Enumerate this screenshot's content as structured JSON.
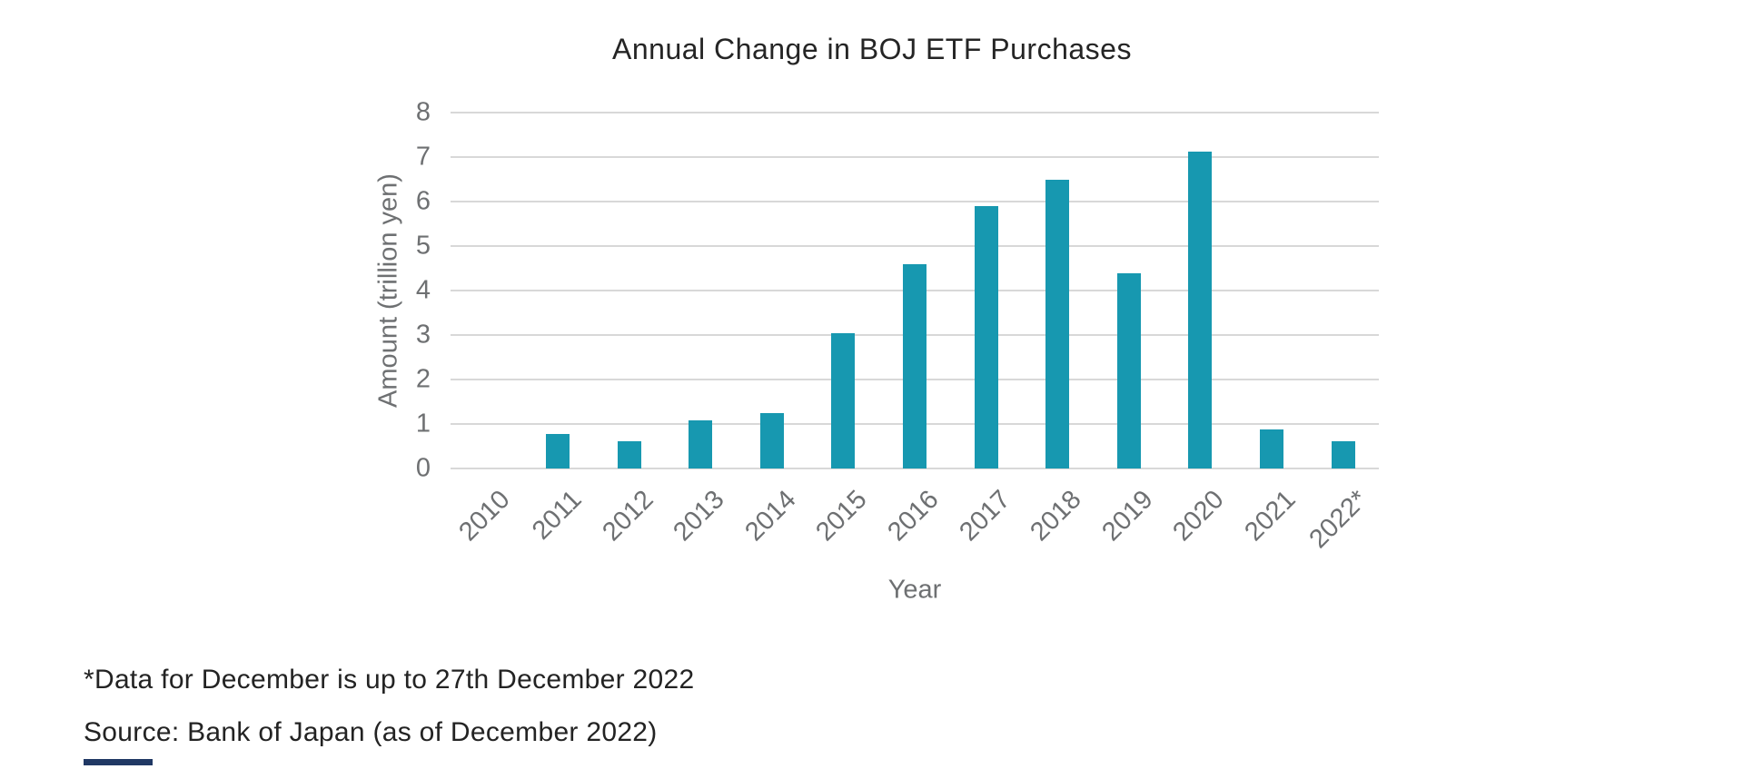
{
  "chart_data": {
    "type": "bar",
    "title": "Annual Change in BOJ ETF Purchases",
    "xlabel": "Year",
    "ylabel": "Amount (trillion yen)",
    "categories": [
      "2010",
      "2011",
      "2012",
      "2013",
      "2014",
      "2015",
      "2016",
      "2017",
      "2018",
      "2019",
      "2020",
      "2021",
      "2022*"
    ],
    "values": [
      0,
      0.78,
      0.62,
      1.08,
      1.25,
      3.05,
      4.6,
      5.9,
      6.5,
      4.38,
      7.12,
      0.87,
      0.62
    ],
    "ylim": [
      0,
      8
    ],
    "yticks": [
      0,
      1,
      2,
      3,
      4,
      5,
      6,
      7,
      8
    ],
    "grid": "horizontal",
    "legend": "none",
    "bar_color": "#1798b0"
  },
  "footnotes": {
    "line1": "*Data for December is up to 27th December 2022",
    "line2": "Source: Bank of Japan (as of December 2022)"
  },
  "colors": {
    "bar": "#1798b0",
    "grid_line": "#d8d8d8",
    "tick_text": "#6e7072",
    "title_text": "#252525",
    "footnote_text": "#232323",
    "accent_bar": "#203864"
  }
}
